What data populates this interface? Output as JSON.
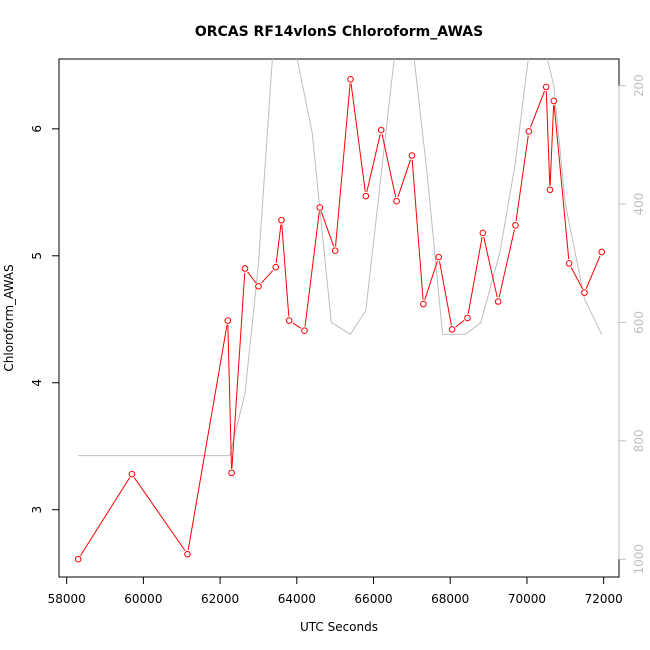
{
  "chart_data": {
    "type": "line",
    "title": "ORCAS RF14vlonS Chloroform_AWAS",
    "xlabel": "UTC Seconds",
    "ylabel": "Chloroform_AWAS",
    "xlim": [
      57800,
      72400
    ],
    "ylim": [
      2.47,
      6.55
    ],
    "y2lim": [
      1030,
      155
    ],
    "x_ticks": [
      58000,
      60000,
      62000,
      64000,
      66000,
      68000,
      70000,
      72000
    ],
    "y_ticks": [
      3,
      4,
      5,
      6
    ],
    "y2_ticks": [
      200,
      400,
      600,
      800,
      1000
    ],
    "grid": false,
    "colors": {
      "series": "#ff0000",
      "secondary": "#bebebe"
    },
    "series": [
      {
        "x": [
          58300,
          59700,
          61150,
          62200,
          62300,
          62650,
          63000,
          63450,
          63600,
          63800,
          64200,
          64600,
          65000,
          65400,
          65800,
          66200,
          66600,
          67000,
          67300,
          67700,
          68050,
          68450,
          68850,
          69250,
          69700,
          70050,
          70500,
          70600,
          70700,
          71100,
          71500,
          71950
        ],
        "y": [
          2.61,
          3.28,
          2.65,
          4.49,
          3.29,
          4.9,
          4.76,
          4.91,
          5.28,
          4.49,
          4.41,
          5.38,
          5.04,
          6.39,
          5.47,
          5.99,
          5.43,
          5.79,
          4.62,
          4.99,
          4.42,
          4.51,
          5.18,
          4.64,
          5.24,
          5.98,
          6.33,
          5.52,
          6.22,
          4.94,
          4.71,
          5.03
        ]
      },
      {
        "x": [
          58300,
          59500,
          61000,
          62250,
          62650,
          63000,
          63400,
          63900,
          64400,
          64900,
          65400,
          65800,
          66200,
          66600,
          67000,
          67400,
          67800,
          68400,
          68800,
          69300,
          69700,
          70100,
          70400,
          70700,
          71000,
          71500,
          71950
        ],
        "y2": [
          825,
          825,
          825,
          825,
          720,
          500,
          120,
          120,
          280,
          600,
          620,
          580,
          350,
          120,
          120,
          350,
          620,
          620,
          600,
          480,
          330,
          120,
          120,
          200,
          400,
          560,
          620
        ]
      }
    ]
  }
}
